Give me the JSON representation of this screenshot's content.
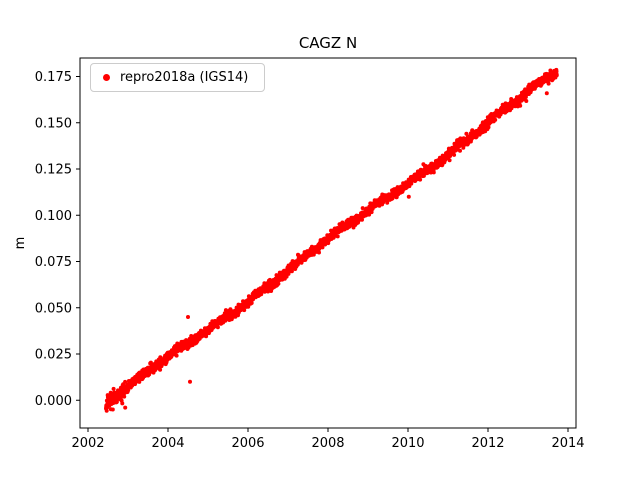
{
  "figure": {
    "background": "#ffffff",
    "axes_color": "#000000",
    "text_color": "#000000"
  },
  "chart_data": {
    "type": "scatter",
    "title": "CAGZ N",
    "xlabel": "",
    "ylabel": "m",
    "xlim": [
      2001.8,
      2014.2
    ],
    "ylim": [
      -0.015,
      0.185
    ],
    "xticks": [
      2002,
      2004,
      2006,
      2008,
      2010,
      2012,
      2014
    ],
    "yticks": [
      0.0,
      0.025,
      0.05,
      0.075,
      0.1,
      0.125,
      0.15,
      0.175
    ],
    "ytick_decimals": 3,
    "grid": false,
    "legend": {
      "position": "upper-left",
      "entries": [
        {
          "label": "repro2018a (IGS14)",
          "color": "#ff0000",
          "marker": "circle"
        }
      ]
    },
    "series": [
      {
        "name": "repro2018a (IGS14)",
        "color": "#ff0000",
        "marker": "circle",
        "marker_radius_px": 2,
        "model": {
          "x_start": 2002.45,
          "x_end": 2013.72,
          "y_start": -0.002,
          "y_end": 0.177,
          "slope_m_per_yr": 0.0159,
          "noise_std_m": 0.0012,
          "n_points": 2600,
          "seed": 42
        },
        "outliers": [
          {
            "x": 2002.62,
            "y": -0.005
          },
          {
            "x": 2002.93,
            "y": -0.004
          },
          {
            "x": 2004.5,
            "y": 0.045
          },
          {
            "x": 2004.55,
            "y": 0.01
          },
          {
            "x": 2010.02,
            "y": 0.11
          },
          {
            "x": 2013.47,
            "y": 0.166
          }
        ]
      }
    ]
  }
}
